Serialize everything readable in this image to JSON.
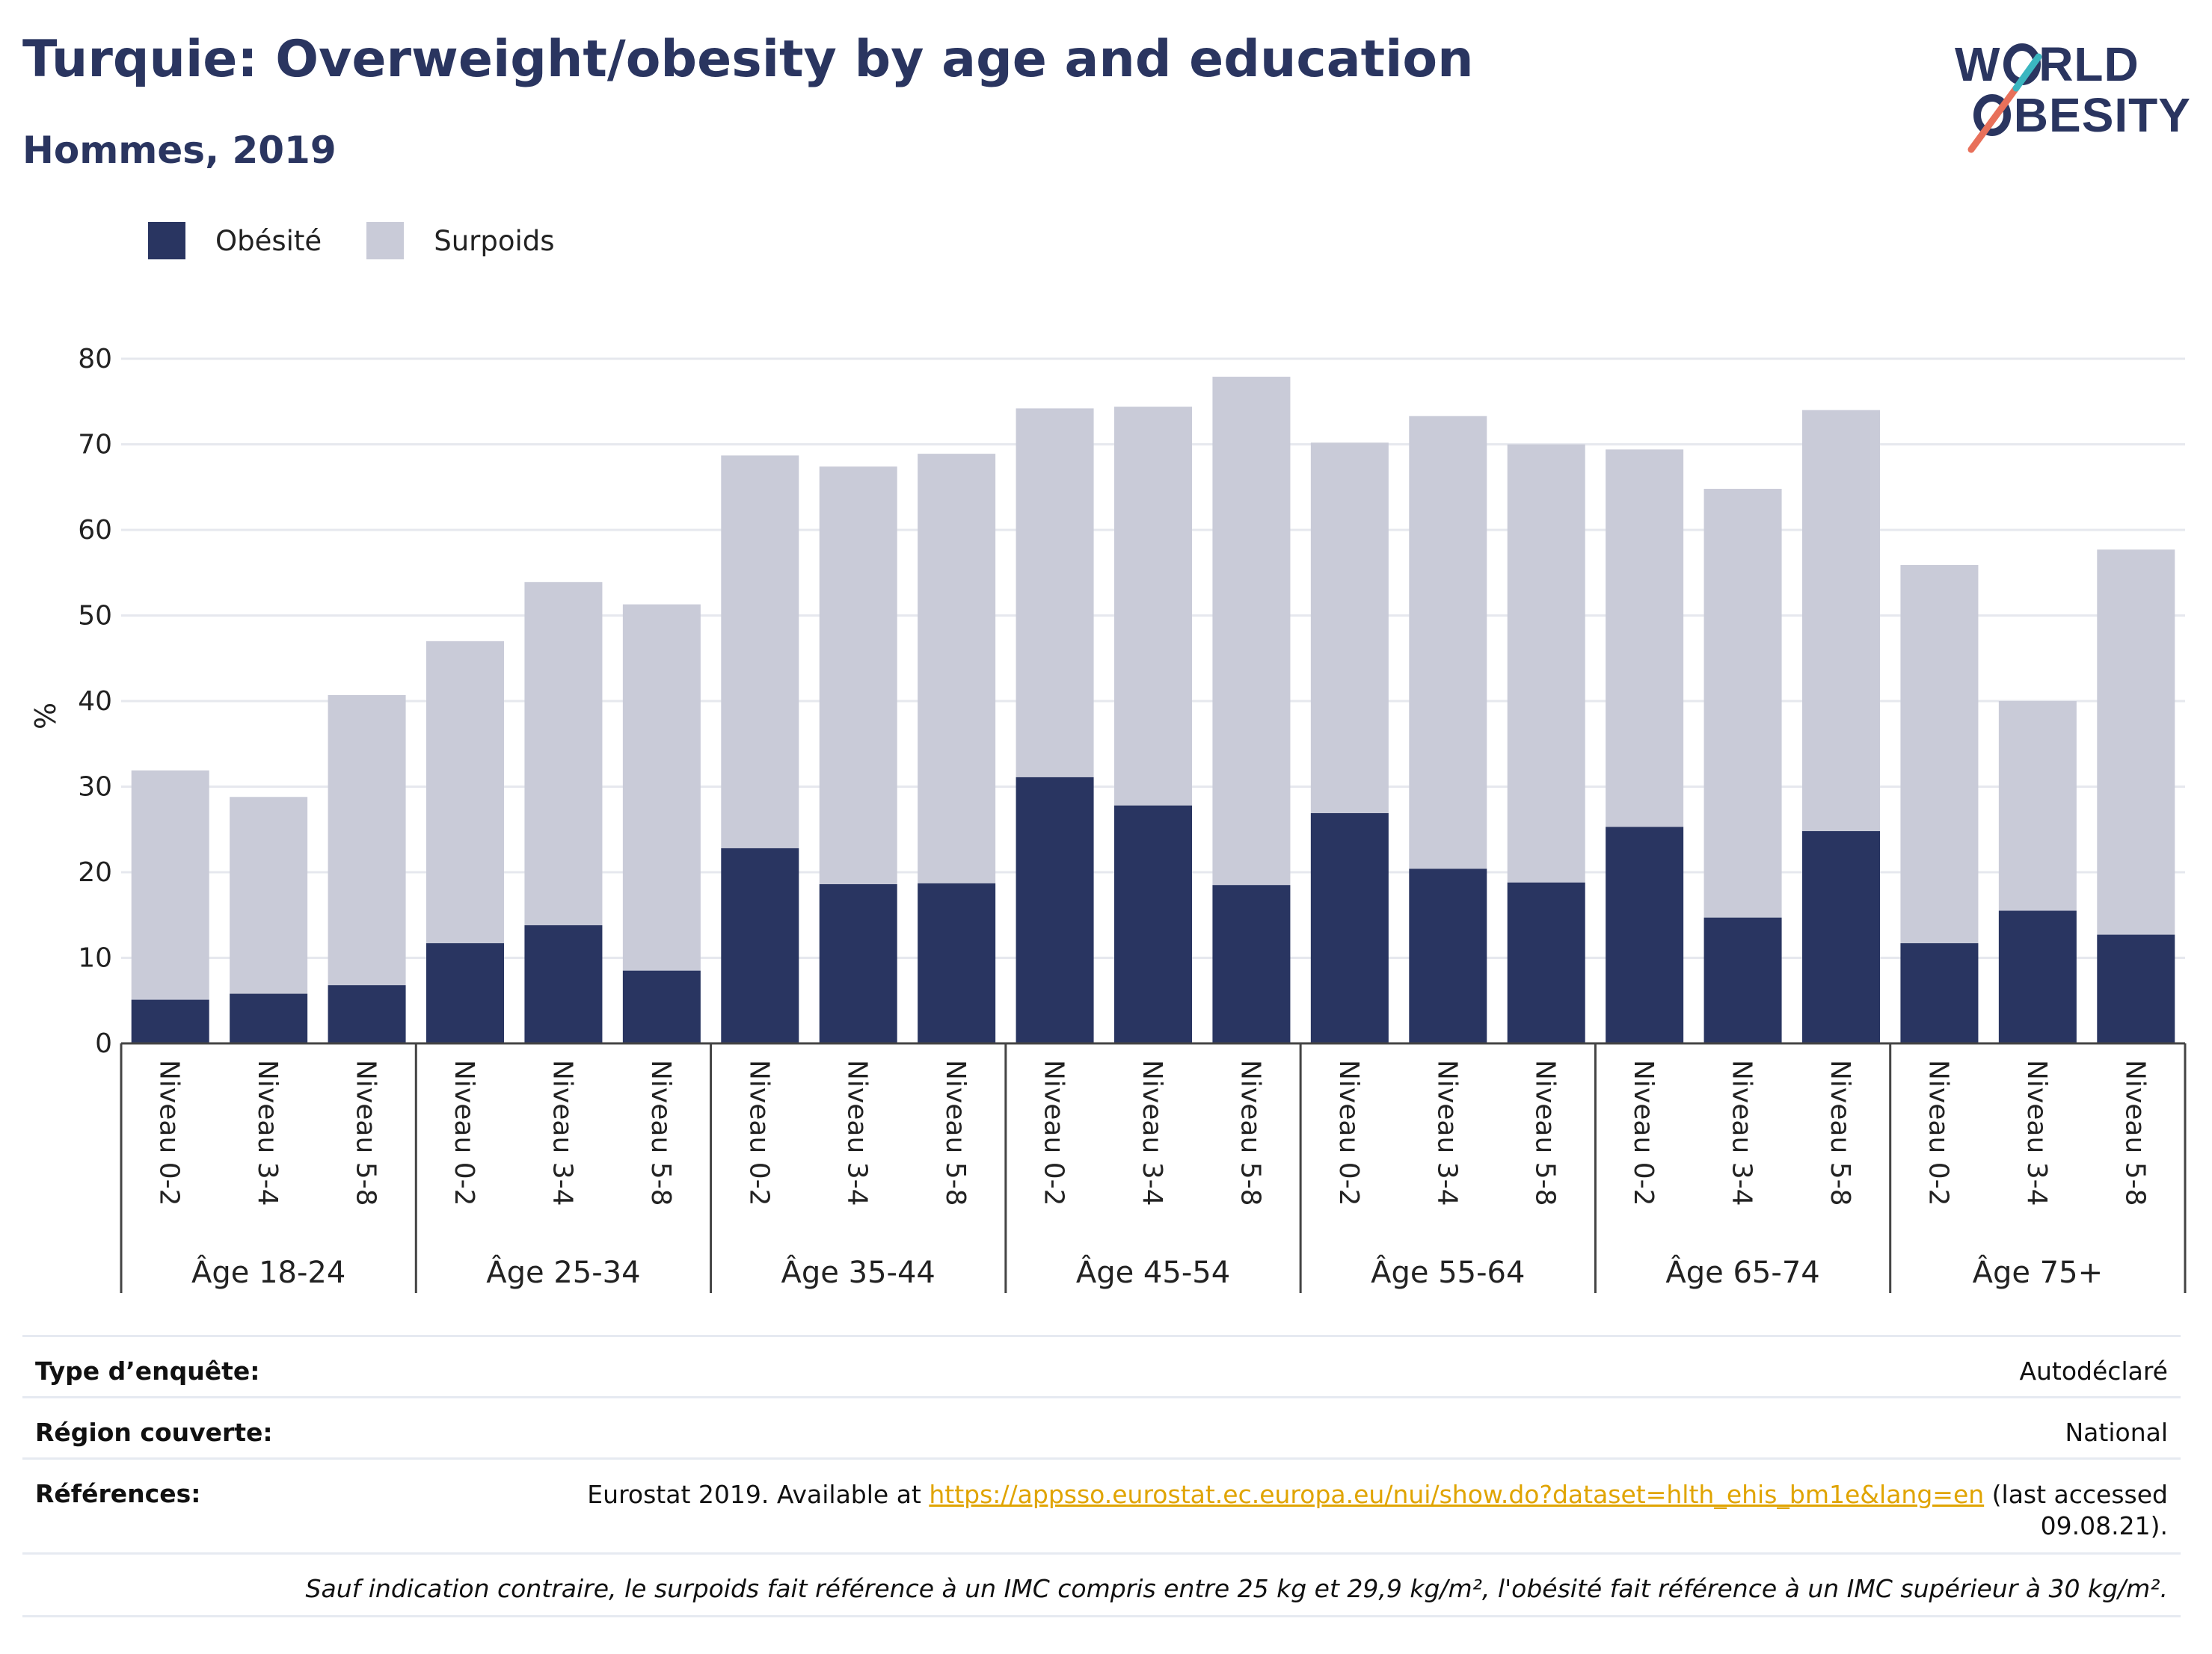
{
  "header": {
    "title": "Turquie: Overweight/obesity by age and education",
    "subtitle": "Hommes, 2019"
  },
  "logo": {
    "line1": "WORLD",
    "line2": "OBESITY",
    "text_color": "#2a3560",
    "accent_colors": [
      "#e8705a",
      "#3bb6c0"
    ]
  },
  "legend": {
    "items": [
      {
        "label": "Obésité",
        "color": "#293561"
      },
      {
        "label": "Surpoids",
        "color": "#c9cbd8"
      }
    ]
  },
  "chart_data": {
    "type": "bar",
    "stacked": true,
    "ylabel": "%",
    "ylim": [
      0,
      80
    ],
    "yticks": [
      0,
      10,
      20,
      30,
      40,
      50,
      60,
      70,
      80
    ],
    "grid": true,
    "legend_position": "top-left",
    "groups": [
      "Âge 18-24",
      "Âge 25-34",
      "Âge 35-44",
      "Âge 45-54",
      "Âge 55-64",
      "Âge 65-74",
      "Âge 75+"
    ],
    "levels": [
      "Niveau 0-2",
      "Niveau 3-4",
      "Niveau 5-8"
    ],
    "series": [
      {
        "name": "Obésité",
        "color": "#293561",
        "values": [
          5.1,
          5.8,
          6.8,
          11.7,
          13.8,
          8.5,
          22.8,
          18.6,
          18.7,
          31.1,
          27.8,
          18.5,
          26.9,
          20.4,
          18.8,
          25.3,
          14.7,
          24.8,
          11.7,
          15.5,
          12.7
        ]
      },
      {
        "name": "Surpoids",
        "color": "#c9cbd8",
        "values": [
          26.8,
          23.0,
          33.9,
          35.3,
          40.1,
          42.8,
          45.9,
          48.8,
          50.2,
          43.1,
          46.6,
          59.4,
          43.3,
          52.9,
          51.2,
          44.1,
          50.1,
          49.2,
          44.2,
          24.5,
          45.0
        ]
      }
    ],
    "totals": [
      31.9,
      28.8,
      40.7,
      47.0,
      53.9,
      51.3,
      68.7,
      67.4,
      68.9,
      74.2,
      74.4,
      77.9,
      70.2,
      73.3,
      70.0,
      69.4,
      64.8,
      74.0,
      55.9,
      40.0,
      57.7
    ]
  },
  "info": {
    "survey_type_label": "Type d’enquête:",
    "survey_type_value": "Autodéclaré",
    "region_label": "Région couverte:",
    "region_value": "National",
    "references_label": "Références:",
    "references_prefix": "Eurostat 2019. Available at ",
    "references_link": "https://appsso.eurostat.ec.europa.eu/nui/show.do?dataset=hlth_ehis_bm1e&lang=en",
    "references_suffix": " (last accessed",
    "references_line2": "09.08.21).",
    "note": "Sauf indication contraire, le surpoids fait référence à un IMC compris entre 25 kg et 29,9 kg/m², l'obésité fait référence à un IMC supérieur à 30 kg/m²."
  }
}
